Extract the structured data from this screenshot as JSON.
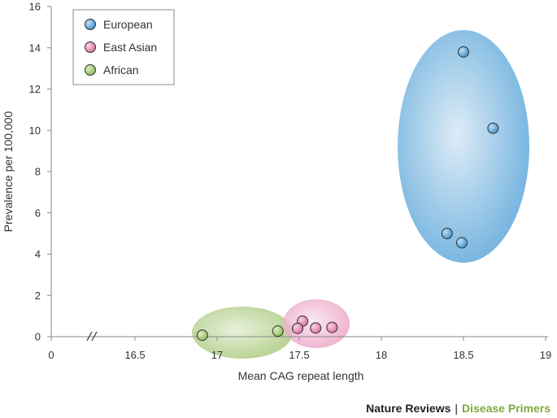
{
  "chart_data": {
    "type": "scatter",
    "xlabel": "Mean CAG repeat length",
    "ylabel": "Prevalence per 100,000",
    "xlim": [
      16,
      19
    ],
    "ylim": [
      0,
      16
    ],
    "x_axis_break": true,
    "x_ticks": [
      "0",
      "16.5",
      "17",
      "17.5",
      "18",
      "18.5",
      "19"
    ],
    "y_ticks": [
      "0",
      "2",
      "4",
      "6",
      "8",
      "10",
      "12",
      "14",
      "16"
    ],
    "legend_position": "top-left",
    "grid": false,
    "series": [
      {
        "name": "European",
        "color": "#3d8fc9",
        "cluster_color": "#6aaedd",
        "points": [
          {
            "x": 18.5,
            "y": 13.8
          },
          {
            "x": 18.68,
            "y": 10.1
          },
          {
            "x": 18.4,
            "y": 5.0
          },
          {
            "x": 18.49,
            "y": 4.55
          }
        ]
      },
      {
        "name": "East Asian",
        "color": "#d86e9e",
        "cluster_color": "#ea9cc0",
        "points": [
          {
            "x": 17.52,
            "y": 0.75
          },
          {
            "x": 17.49,
            "y": 0.4
          },
          {
            "x": 17.6,
            "y": 0.42
          },
          {
            "x": 17.7,
            "y": 0.45
          }
        ]
      },
      {
        "name": "African",
        "color": "#8dba5a",
        "cluster_color": "#a9c97c",
        "points": [
          {
            "x": 16.91,
            "y": 0.07
          },
          {
            "x": 17.37,
            "y": 0.27
          }
        ]
      }
    ]
  },
  "footer": {
    "journal": "Nature Reviews",
    "separator": "|",
    "series_name": "Disease Primers"
  }
}
